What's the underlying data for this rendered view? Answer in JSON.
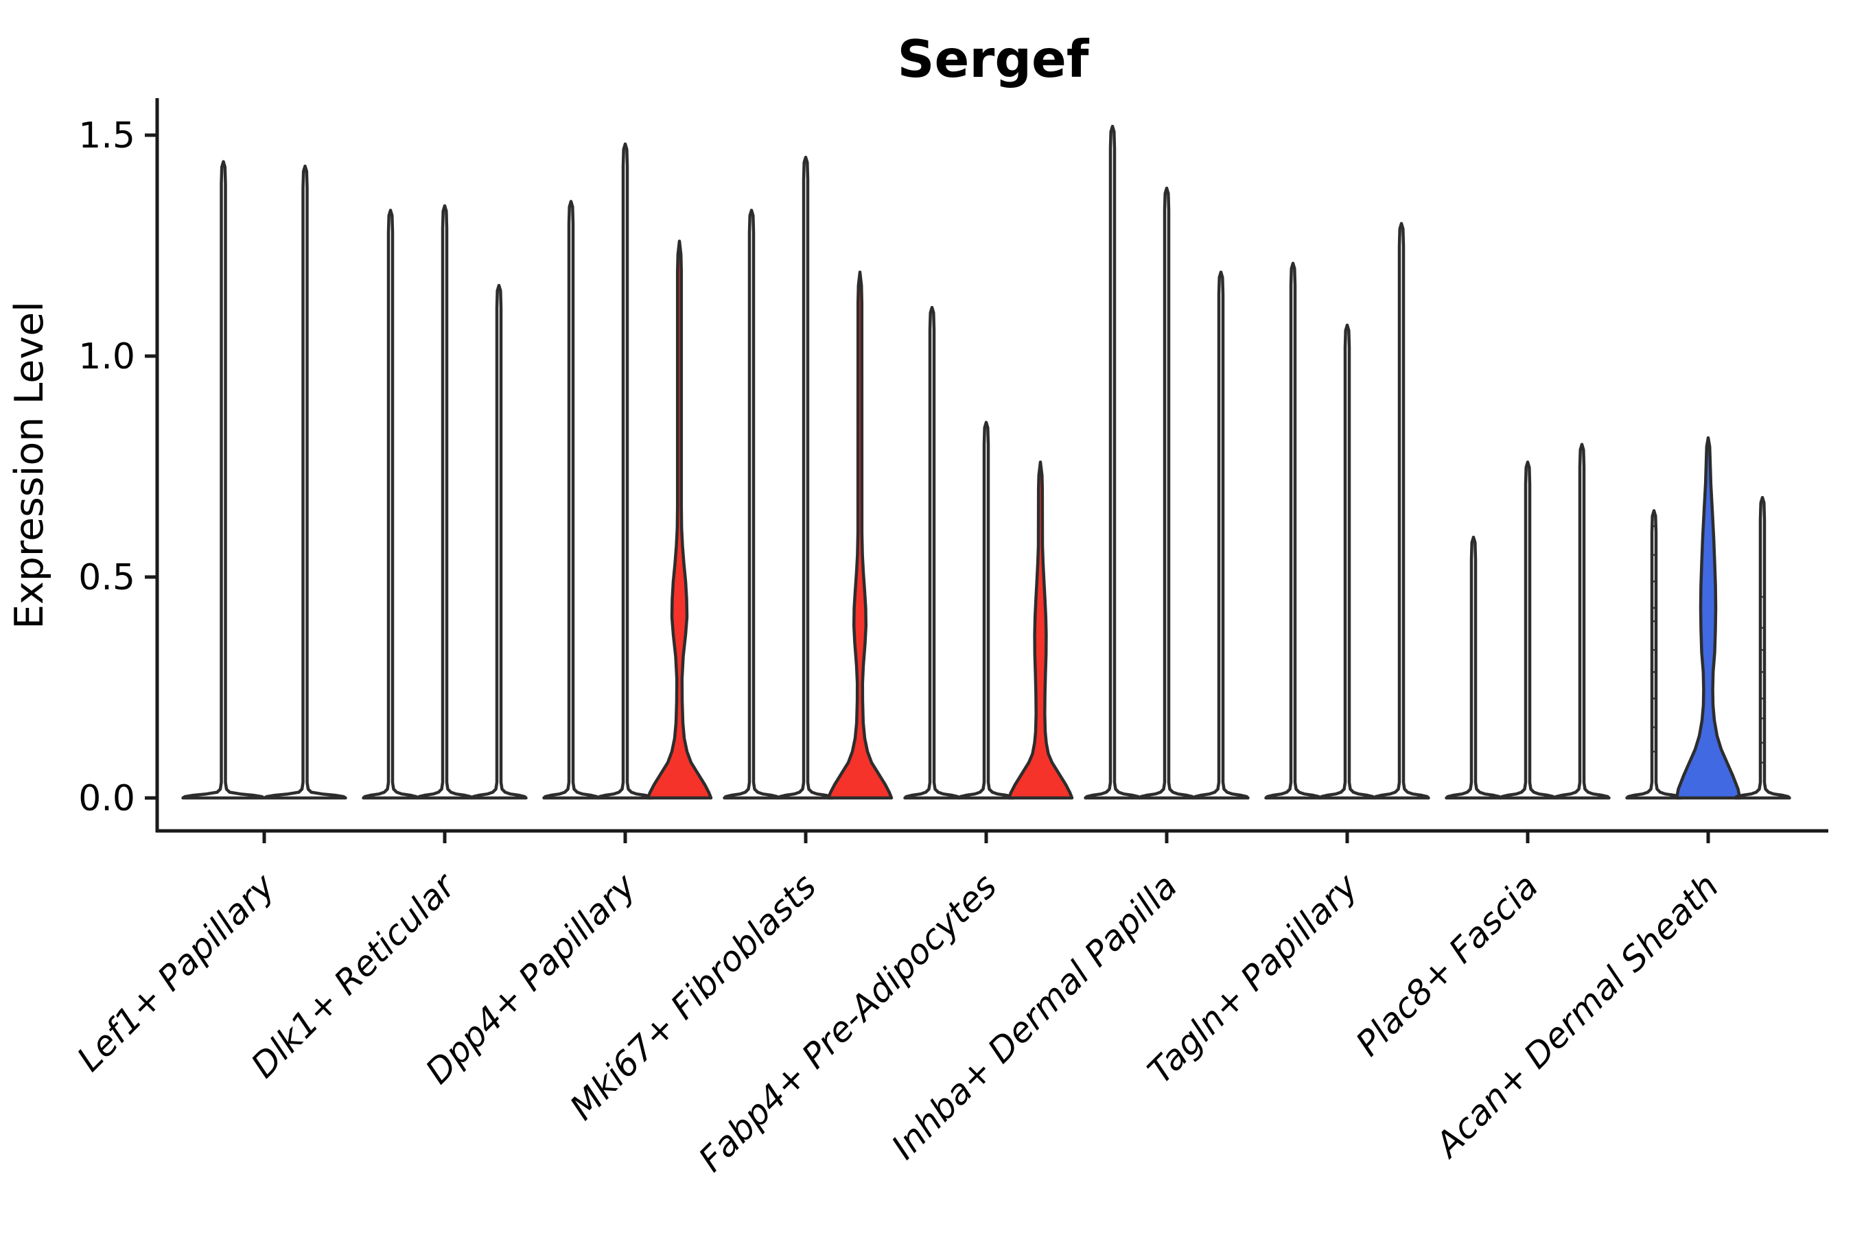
{
  "title": "Sergef",
  "y_axis": {
    "label": "Expression Level",
    "tick_labels": [
      "0.0",
      "0.5",
      "1.0",
      "1.5"
    ]
  },
  "chart_data": {
    "type": "violin",
    "title": "Sergef",
    "xlabel": "",
    "ylabel": "Expression Level",
    "ylim": [
      0,
      1.58
    ],
    "yticks": [
      0.0,
      0.5,
      1.0,
      1.5
    ],
    "ytick_labels": [
      "0.0",
      "0.5",
      "1.0",
      "1.5"
    ],
    "grid": false,
    "legend": "none",
    "background": "#ffffff",
    "colors": {
      "plain_fill": "#ffffff",
      "highlight_red": "#f5332a",
      "highlight_blue": "#4169e1",
      "outline": "#2d2d2d",
      "axis": "#1a1a1a",
      "text": "#000000"
    },
    "categories": [
      "Lef1+ Papillary",
      "Dlk1+ Reticular",
      "Dpp4+ Papillary",
      "Mki67+ Fibroblasts",
      "Fabp4+ Pre-Adipocytes",
      "Inhba+ Dermal Papilla",
      "Tagln+ Papillary",
      "Plac8+ Fascia",
      "Acan+ Dermal Sheath"
    ],
    "groups": [
      {
        "category": "Lef1+ Papillary",
        "violins": [
          {
            "max": 1.44,
            "style": "plain"
          },
          {
            "max": 1.43,
            "style": "plain"
          }
        ]
      },
      {
        "category": "Dlk1+ Reticular",
        "violins": [
          {
            "max": 1.33,
            "style": "plain"
          },
          {
            "max": 1.34,
            "style": "plain"
          },
          {
            "max": 1.16,
            "style": "plain"
          }
        ]
      },
      {
        "category": "Dpp4+ Papillary",
        "violins": [
          {
            "max": 1.35,
            "style": "plain"
          },
          {
            "max": 1.48,
            "style": "plain"
          },
          {
            "max": 1.26,
            "style": "highlight-red",
            "profile": [
              [
                0,
                46
              ],
              [
                0.012,
                43
              ],
              [
                0.03,
                37
              ],
              [
                0.055,
                27
              ],
              [
                0.08,
                17
              ],
              [
                0.105,
                11
              ],
              [
                0.135,
                7
              ],
              [
                0.17,
                5
              ],
              [
                0.22,
                4
              ],
              [
                0.27,
                3.8
              ],
              [
                0.32,
                5.5
              ],
              [
                0.37,
                9
              ],
              [
                0.41,
                11
              ],
              [
                0.45,
                10.5
              ],
              [
                0.49,
                9
              ],
              [
                0.53,
                6.5
              ],
              [
                0.57,
                4.5
              ],
              [
                0.61,
                3.2
              ],
              [
                0.66,
                2.8
              ],
              [
                1.19,
                2.8
              ],
              [
                1.23,
                2.2
              ],
              [
                1.26,
                0.01
              ]
            ]
          }
        ]
      },
      {
        "category": "Mki67+ Fibroblasts",
        "violins": [
          {
            "max": 1.33,
            "style": "plain"
          },
          {
            "max": 1.45,
            "style": "plain"
          },
          {
            "max": 1.19,
            "style": "highlight-red",
            "profile": [
              [
                0,
                46
              ],
              [
                0.012,
                43
              ],
              [
                0.03,
                37
              ],
              [
                0.055,
                27
              ],
              [
                0.08,
                17
              ],
              [
                0.105,
                11
              ],
              [
                0.135,
                7
              ],
              [
                0.17,
                4.8
              ],
              [
                0.22,
                3.9
              ],
              [
                0.26,
                3.8
              ],
              [
                0.3,
                5
              ],
              [
                0.35,
                7.5
              ],
              [
                0.39,
                8.8
              ],
              [
                0.43,
                8.4
              ],
              [
                0.47,
                6.8
              ],
              [
                0.51,
                5
              ],
              [
                0.55,
                3.6
              ],
              [
                0.6,
                2.9
              ],
              [
                1.12,
                2.8
              ],
              [
                1.16,
                2.2
              ],
              [
                1.19,
                0.01
              ]
            ]
          }
        ]
      },
      {
        "category": "Fabp4+ Pre-Adipocytes",
        "violins": [
          {
            "max": 1.11,
            "style": "plain"
          },
          {
            "max": 0.85,
            "style": "plain"
          },
          {
            "max": 0.76,
            "style": "highlight-red",
            "profile": [
              [
                0,
                46
              ],
              [
                0.012,
                43
              ],
              [
                0.03,
                37
              ],
              [
                0.055,
                27
              ],
              [
                0.08,
                17
              ],
              [
                0.1,
                11.5
              ],
              [
                0.125,
                8.5
              ],
              [
                0.15,
                7
              ],
              [
                0.19,
                6.3
              ],
              [
                0.235,
                6.6
              ],
              [
                0.28,
                7.3
              ],
              [
                0.325,
                8.2
              ],
              [
                0.37,
                8.4
              ],
              [
                0.41,
                7.8
              ],
              [
                0.45,
                6.6
              ],
              [
                0.49,
                5.2
              ],
              [
                0.53,
                3.9
              ],
              [
                0.57,
                3
              ],
              [
                0.7,
                2.8
              ],
              [
                0.73,
                2.3
              ],
              [
                0.76,
                0.01
              ]
            ]
          }
        ]
      },
      {
        "category": "Inhba+ Dermal Papilla",
        "violins": [
          {
            "max": 1.52,
            "style": "plain"
          },
          {
            "max": 1.38,
            "style": "plain"
          },
          {
            "max": 1.19,
            "style": "plain"
          }
        ]
      },
      {
        "category": "Tagln+ Papillary",
        "violins": [
          {
            "max": 1.21,
            "style": "plain"
          },
          {
            "max": 1.07,
            "style": "plain"
          },
          {
            "max": 1.3,
            "style": "plain"
          }
        ]
      },
      {
        "category": "Plac8+ Fascia",
        "violins": [
          {
            "max": 0.59,
            "style": "plain"
          },
          {
            "max": 0.76,
            "style": "plain"
          },
          {
            "max": 0.8,
            "style": "plain"
          }
        ]
      },
      {
        "category": "Acan+ Dermal Sheath",
        "violins": [
          {
            "max": 0.65,
            "style": "plain",
            "points": [
              0.615,
              0.55,
              0.49,
              0.43,
              0.4,
              0.335,
              0.285,
              0.225,
              0.16,
              0.105
            ]
          },
          {
            "max": 0.82,
            "style": "highlight-blue",
            "profile": [
              [
                0,
                46
              ],
              [
                0.02,
                43.5
              ],
              [
                0.05,
                36
              ],
              [
                0.08,
                27.5
              ],
              [
                0.11,
                19
              ],
              [
                0.14,
                13
              ],
              [
                0.175,
                9
              ],
              [
                0.21,
                7
              ],
              [
                0.245,
                6.6
              ],
              [
                0.285,
                7.2
              ],
              [
                0.33,
                9.5
              ],
              [
                0.38,
                10.5
              ],
              [
                0.43,
                11
              ],
              [
                0.48,
                10.6
              ],
              [
                0.53,
                9.5
              ],
              [
                0.59,
                8
              ],
              [
                0.65,
                6
              ],
              [
                0.71,
                3.9
              ],
              [
                0.76,
                2.9
              ],
              [
                0.795,
                2.2
              ],
              [
                0.815,
                0.01
              ]
            ]
          },
          {
            "max": 0.68,
            "style": "plain",
            "points": [
              0.455,
              0.385,
              0.335,
              0.285,
              0.225,
              0.18,
              0.125,
              0.08
            ]
          }
        ]
      }
    ]
  }
}
